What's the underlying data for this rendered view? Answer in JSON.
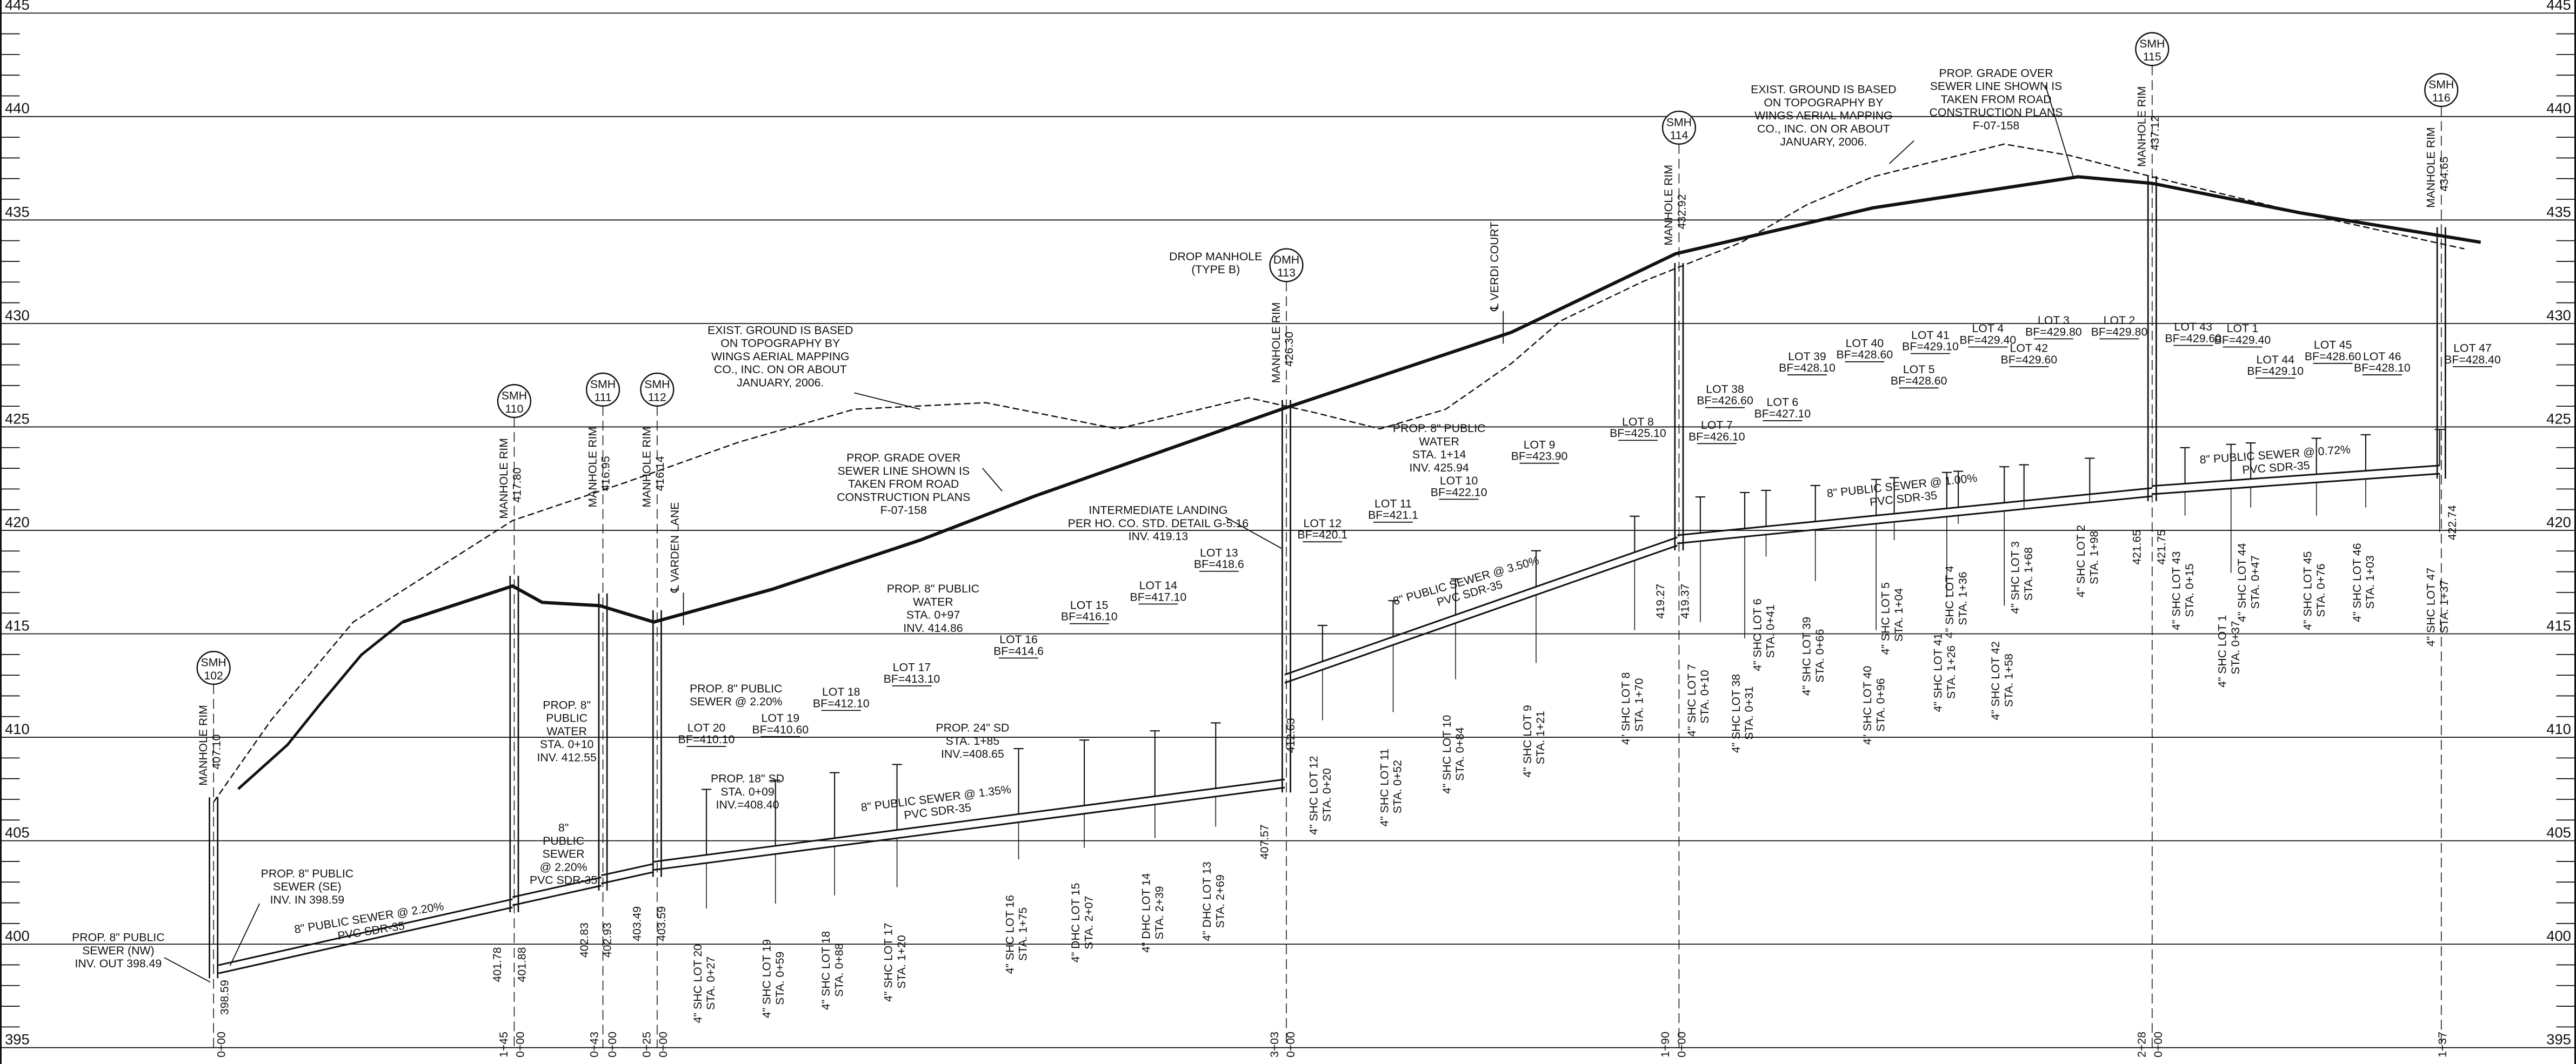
{
  "elevations": [
    "445",
    "440",
    "435",
    "430",
    "425",
    "420",
    "415",
    "410",
    "405",
    "400",
    "395"
  ],
  "manholes": [
    {
      "type": "SMH",
      "number": "102",
      "rim_label": "MANHOLE RIM",
      "rim": "407.10"
    },
    {
      "type": "SMH",
      "number": "110",
      "rim_label": "MANHOLE RIM",
      "rim": "417.80"
    },
    {
      "type": "SMH",
      "number": "111",
      "rim_label": "MANHOLE RIM",
      "rim": "416.95"
    },
    {
      "type": "SMH",
      "number": "112",
      "rim_label": "MANHOLE RIM",
      "rim": "416.14"
    },
    {
      "type": "DMH",
      "number": "113",
      "rim_label": "MANHOLE RIM",
      "rim": "426.30"
    },
    {
      "type": "SMH",
      "number": "114",
      "rim_label": "MANHOLE RIM",
      "rim": "432.92"
    },
    {
      "type": "SMH",
      "number": "115",
      "rim_label": "MANHOLE RIM",
      "rim": "437.12"
    },
    {
      "type": "SMH",
      "number": "116",
      "rim_label": "MANHOLE RIM",
      "rim": "434.65"
    }
  ],
  "inverts": [
    "398.59",
    "401.78",
    "401.88",
    "402.83",
    "402.93",
    "403.49",
    "403.59",
    "407.57",
    "412.63",
    "419.27",
    "419.37",
    "421.65",
    "421.75",
    "422.74"
  ],
  "stations": [
    "0+00",
    "1+45",
    "0+00",
    "0+43",
    "0+00",
    "0+25",
    "0+00",
    "3+03",
    "0+00",
    "1+90",
    "0+00",
    "2+28",
    "0+00",
    "1+37"
  ],
  "lots": [
    {
      "lot": "LOT 20",
      "bf": "BF=410.10"
    },
    {
      "lot": "LOT 19",
      "bf": "BF=410.60"
    },
    {
      "lot": "LOT 18",
      "bf": "BF=412.10"
    },
    {
      "lot": "LOT 17",
      "bf": "BF=413.10"
    },
    {
      "lot": "LOT 16",
      "bf": "BF=414.6"
    },
    {
      "lot": "LOT 15",
      "bf": "BF=416.10"
    },
    {
      "lot": "LOT 14",
      "bf": "BF=417.10"
    },
    {
      "lot": "LOT 13",
      "bf": "BF=418.6"
    },
    {
      "lot": "LOT 12",
      "bf": "BF=420.1"
    },
    {
      "lot": "LOT 11",
      "bf": "BF=421.1"
    },
    {
      "lot": "LOT 10",
      "bf": "BF=422.10"
    },
    {
      "lot": "LOT 9",
      "bf": "BF=423.90"
    },
    {
      "lot": "LOT 8",
      "bf": "BF=425.10"
    },
    {
      "lot": "LOT 7",
      "bf": "BF=426.10"
    },
    {
      "lot": "LOT 38",
      "bf": "BF=426.60"
    },
    {
      "lot": "LOT 6",
      "bf": "BF=427.10"
    },
    {
      "lot": "LOT 39",
      "bf": "BF=428.10"
    },
    {
      "lot": "LOT 40",
      "bf": "BF=428.60"
    },
    {
      "lot": "LOT 41",
      "bf": "BF=429.10"
    },
    {
      "lot": "LOT 5",
      "bf": "BF=428.60"
    },
    {
      "lot": "LOT 4",
      "bf": "BF=429.40"
    },
    {
      "lot": "LOT 42",
      "bf": "BF=429.60"
    },
    {
      "lot": "LOT 3",
      "bf": "BF=429.80"
    },
    {
      "lot": "LOT 2",
      "bf": "BF=429.80"
    },
    {
      "lot": "LOT 43",
      "bf": "BF=429.60"
    },
    {
      "lot": "LOT 1",
      "bf": "BF=429.40"
    },
    {
      "lot": "LOT 44",
      "bf": "BF=429.10"
    },
    {
      "lot": "LOT 45",
      "bf": "BF=428.60"
    },
    {
      "lot": "LOT 46",
      "bf": "BF=428.10"
    },
    {
      "lot": "LOT 47",
      "bf": "BF=428.40"
    }
  ],
  "services": [
    {
      "label": "4\" SHC  LOT 20",
      "sta": "STA. 0+27"
    },
    {
      "label": "4\" SHC  LOT 19",
      "sta": "STA. 0+59"
    },
    {
      "label": "4\" SHC  LOT 18",
      "sta": "STA. 0+88"
    },
    {
      "label": "4\" SHC  LOT 17",
      "sta": "STA. 1+20"
    },
    {
      "label": "4\" SHC  LOT 16",
      "sta": "STA. 1+75"
    },
    {
      "label": "4\" DHC  LOT 15",
      "sta": "STA. 2+07"
    },
    {
      "label": "4\" DHC  LOT 14",
      "sta": "STA. 2+39"
    },
    {
      "label": "4\" DHC  LOT 13",
      "sta": "STA. 2+69"
    },
    {
      "label": "4\" SHC  LOT 12",
      "sta": "STA. 0+20"
    },
    {
      "label": "4\" SHC  LOT 11",
      "sta": "STA. 0+52"
    },
    {
      "label": "4\" SHC  LOT 10",
      "sta": "STA. 0+84"
    },
    {
      "label": "4\" SHC  LOT 9",
      "sta": "STA. 1+21"
    },
    {
      "label": "4\" SHC  LOT 8",
      "sta": "STA. 1+70"
    },
    {
      "label": "4\" SHC  LOT 7",
      "sta": "STA. 0+10"
    },
    {
      "label": "4\" SHC  LOT 38",
      "sta": "STA. 0+31"
    },
    {
      "label": "4\" SHC  LOT 6",
      "sta": "STA. 0+41"
    },
    {
      "label": "4\" SHC  LOT 39",
      "sta": "STA. 0+66"
    },
    {
      "label": "4\" SHC  LOT 40",
      "sta": "STA. 0+96"
    },
    {
      "label": "4\" SHC  LOT 5",
      "sta": "STA. 1+04"
    },
    {
      "label": "4\" SHC  LOT 41",
      "sta": "STA. 1+26"
    },
    {
      "label": "4\" SHC  LOT 4",
      "sta": "STA. 1+36"
    },
    {
      "label": "4\" SHC  LOT 42",
      "sta": "STA. 1+58"
    },
    {
      "label": "4\" SHC  LOT 3",
      "sta": "STA. 1+68"
    },
    {
      "label": "4\" SHC  LOT 2",
      "sta": "STA. 1+98"
    },
    {
      "label": "4\" SHC  LOT 43",
      "sta": "STA. 0+15"
    },
    {
      "label": "4\" SHC  LOT 1",
      "sta": "STA. 0+37"
    },
    {
      "label": "4\" SHC  LOT 44",
      "sta": "STA. 0+47"
    },
    {
      "label": "4\" SHC  LOT 45",
      "sta": "STA. 0+76"
    },
    {
      "label": "4\" SHC  LOT 46",
      "sta": "STA. 1+03"
    },
    {
      "label": "4\" SHC  LOT 47",
      "sta": "STA. 1+37"
    }
  ],
  "centerlines": [
    "℄ VARDEN LANE",
    "℄ VERDI COURT"
  ],
  "notes": [
    {
      "lines": [
        "PROP. 8\" PUBLIC",
        "SEWER (NW)",
        "INV. OUT 398.49"
      ]
    },
    {
      "lines": [
        "PROP. 8\" PUBLIC",
        "SEWER (SE)",
        "INV. IN 398.59"
      ]
    },
    {
      "lines": [
        "8\" PUBLIC SEWER @ 2.20%",
        "PVC SDR-35"
      ]
    },
    {
      "lines": [
        "8\"",
        "PUBLIC",
        "SEWER",
        "@ 2.20%",
        "PVC SDR-35"
      ]
    },
    {
      "lines": [
        "PROP. 8\"",
        "PUBLIC",
        "WATER",
        "STA. 0+10",
        "INV. 412.55"
      ]
    },
    {
      "lines": [
        "PROP. 8\" PUBLIC",
        "SEWER @ 2.20%"
      ]
    },
    {
      "lines": [
        "PROP. 18\" SD",
        "STA. 0+09",
        "INV.=408.40"
      ]
    },
    {
      "lines": [
        "8\" PUBLIC SEWER @ 1.35%",
        "PVC SDR-35"
      ]
    },
    {
      "lines": [
        "PROP. 24\" SD",
        "STA. 1+85",
        "INV.=408.65"
      ]
    },
    {
      "lines": [
        "PROP. 8\" PUBLIC",
        "WATER",
        "STA. 0+97",
        "INV. 414.86"
      ]
    },
    {
      "lines": [
        "EXIST. GROUND IS BASED",
        "ON TOPOGRAPHY BY",
        "WINGS AERIAL MAPPING",
        "CO., INC. ON OR ABOUT",
        "JANUARY, 2006."
      ]
    },
    {
      "lines": [
        "PROP. GRADE OVER",
        "SEWER LINE SHOWN IS",
        "TAKEN FROM ROAD",
        "CONSTRUCTION PLANS",
        "F-07-158"
      ]
    },
    {
      "lines": [
        "INTERMEDIATE LANDING",
        "PER HO. CO. STD. DETAIL G-5.16",
        "INV. 419.13"
      ]
    },
    {
      "lines": [
        "DROP MANHOLE",
        "(TYPE B)"
      ]
    },
    {
      "lines": [
        "8\" PUBLIC SEWER @ 3.50%",
        "PVC SDR-35"
      ]
    },
    {
      "lines": [
        "PROP. 8\" PUBLIC",
        "WATER",
        "STA. 1+14",
        "INV. 425.94"
      ]
    },
    {
      "lines": [
        "EXIST. GROUND IS BASED",
        "ON TOPOGRAPHY BY",
        "WINGS AERIAL MAPPING",
        "CO., INC. ON OR ABOUT",
        "JANUARY, 2006."
      ]
    },
    {
      "lines": [
        "PROP. GRADE OVER",
        "SEWER LINE SHOWN IS",
        "TAKEN FROM ROAD",
        "CONSTRUCTION PLANS",
        "F-07-158"
      ]
    },
    {
      "lines": [
        "8\" PUBLIC SEWER @ 1.00%",
        "PVC SDR-35"
      ]
    },
    {
      "lines": [
        "8\" PUBLIC SEWER @ 0.72%",
        "PVC SDR-35"
      ]
    }
  ]
}
